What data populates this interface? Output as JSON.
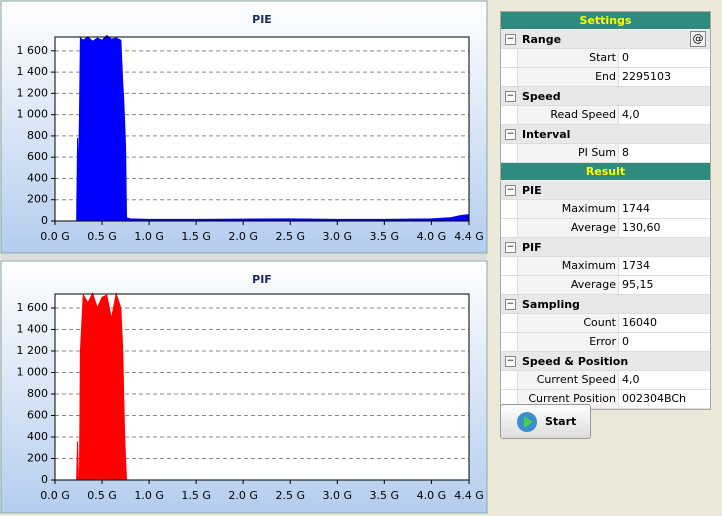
{
  "chart_data": [
    {
      "type": "area",
      "title": "PIE",
      "color": "#0000ff",
      "x": [
        0,
        0.23,
        0.24,
        0.25,
        0.26,
        0.27,
        0.3,
        0.35,
        0.4,
        0.45,
        0.5,
        0.55,
        0.6,
        0.65,
        0.7,
        0.72,
        0.73,
        0.75,
        0.76,
        0.8,
        1.0,
        1.5,
        2.0,
        2.5,
        3.0,
        3.5,
        4.0,
        4.2,
        4.3,
        4.4
      ],
      "values": [
        0,
        0,
        780,
        400,
        1000,
        1720,
        1700,
        1730,
        1690,
        1720,
        1700,
        1744,
        1710,
        1720,
        1700,
        1300,
        1150,
        700,
        30,
        20,
        15,
        15,
        18,
        20,
        15,
        15,
        20,
        30,
        50,
        60
      ],
      "xlim": [
        0,
        4.4
      ],
      "ylim": [
        0,
        1730
      ],
      "xticks": [
        {
          "value": 0,
          "label": "0.0 G"
        },
        {
          "value": 0.5,
          "label": "0.5 G"
        },
        {
          "value": 1,
          "label": "1.0 G"
        },
        {
          "value": 1.5,
          "label": "1.5 G"
        },
        {
          "value": 2,
          "label": "2.0 G"
        },
        {
          "value": 2.5,
          "label": "2.5 G"
        },
        {
          "value": 3,
          "label": "3.0 G"
        },
        {
          "value": 3.5,
          "label": "3.5 G"
        },
        {
          "value": 4,
          "label": "4.0 G"
        },
        {
          "value": 4.4,
          "label": "4.4 G"
        }
      ],
      "yticks": [
        0,
        200,
        400,
        600,
        800,
        {
          "value": 1000,
          "label": "1 000"
        },
        {
          "value": 1200,
          "label": "1 200"
        },
        {
          "value": 1400,
          "label": "1 400"
        },
        {
          "value": 1600,
          "label": "1 600"
        }
      ],
      "grid": true
    },
    {
      "type": "area",
      "title": "PIF",
      "color": "#ff0000",
      "x": [
        0,
        0.23,
        0.24,
        0.25,
        0.26,
        0.27,
        0.3,
        0.35,
        0.4,
        0.45,
        0.5,
        0.55,
        0.6,
        0.65,
        0.7,
        0.72,
        0.74,
        0.76,
        0.8,
        1.0,
        2.0,
        3.0,
        4.0,
        4.4
      ],
      "values": [
        0,
        0,
        360,
        0,
        0,
        1200,
        1720,
        1650,
        1734,
        1600,
        1700,
        1720,
        1500,
        1730,
        1600,
        1200,
        400,
        0,
        0,
        0,
        0,
        0,
        0,
        0
      ],
      "xlim": [
        0,
        4.4
      ],
      "ylim": [
        0,
        1730
      ],
      "xticks": [
        {
          "value": 0,
          "label": "0.0 G"
        },
        {
          "value": 0.5,
          "label": "0.5 G"
        },
        {
          "value": 1,
          "label": "1.0 G"
        },
        {
          "value": 1.5,
          "label": "1.5 G"
        },
        {
          "value": 2,
          "label": "2.0 G"
        },
        {
          "value": 2.5,
          "label": "2.5 G"
        },
        {
          "value": 3,
          "label": "3.0 G"
        },
        {
          "value": 3.5,
          "label": "3.5 G"
        },
        {
          "value": 4,
          "label": "4.0 G"
        },
        {
          "value": 4.4,
          "label": "4.4 G"
        }
      ],
      "yticks": [
        0,
        200,
        400,
        600,
        800,
        {
          "value": 1000,
          "label": "1 000"
        },
        {
          "value": 1200,
          "label": "1 200"
        },
        {
          "value": 1400,
          "label": "1 400"
        },
        {
          "value": 1600,
          "label": "1 600"
        }
      ],
      "grid": true
    }
  ],
  "panel": {
    "groups": [
      {
        "title": "Settings",
        "sections": [
          {
            "name": "Range",
            "button": "@",
            "rows": [
              [
                "Start",
                "0"
              ],
              [
                "End",
                "2295103"
              ]
            ]
          },
          {
            "name": "Speed",
            "rows": [
              [
                "Read Speed",
                "4,0"
              ]
            ]
          },
          {
            "name": "Interval",
            "rows": [
              [
                "PI Sum",
                "8"
              ]
            ]
          }
        ]
      },
      {
        "title": "Result",
        "sections": [
          {
            "name": "PIE",
            "rows": [
              [
                "Maximum",
                "1744"
              ],
              [
                "Average",
                "130,60"
              ]
            ]
          },
          {
            "name": "PIF",
            "rows": [
              [
                "Maximum",
                "1734"
              ],
              [
                "Average",
                "95,15"
              ]
            ]
          },
          {
            "name": "Sampling",
            "rows": [
              [
                "Count",
                "16040"
              ],
              [
                "Error",
                "0"
              ]
            ]
          },
          {
            "name": "Speed & Position",
            "rows": [
              [
                "Current Speed",
                "4,0"
              ],
              [
                "Current Position",
                "002304BCh"
              ]
            ]
          }
        ]
      }
    ],
    "start_button": "Start"
  }
}
